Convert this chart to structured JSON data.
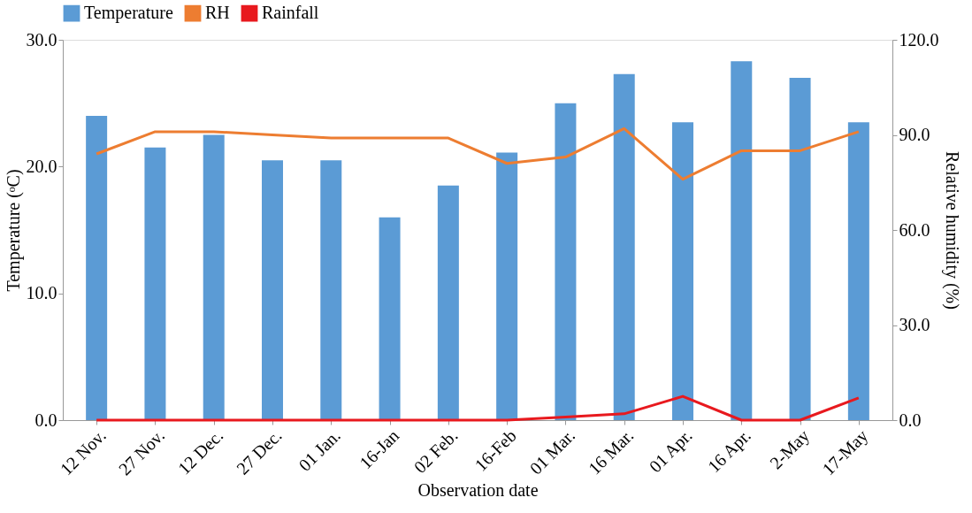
{
  "chart_data": {
    "type": "bar",
    "xlabel": "Observation date",
    "ylabel": "Temperature (ᵒC)",
    "y2label": "Relative humidity (%)",
    "categories": [
      "12 Nov.",
      "27 Nov.",
      "12 Dec.",
      "27 Dec.",
      "01 Jan.",
      "16-Jan",
      "02 Feb.",
      "16-Feb",
      "01 Mar.",
      "16 Mar.",
      "01 Apr.",
      "16 Apr.",
      "2-May",
      "17-May"
    ],
    "series": [
      {
        "name": "Temperature",
        "color": "#5b9bd5",
        "values": [
          24.0,
          21.5,
          22.5,
          20.5,
          20.5,
          16.0,
          18.5,
          21.1,
          25.0,
          27.3,
          23.5,
          28.3,
          27.0,
          23.5
        ]
      },
      {
        "name": "RH",
        "type": "line",
        "axis": "y2",
        "color": "#ed7d31",
        "values": [
          84,
          91,
          91,
          90,
          89,
          89,
          89,
          81,
          83,
          92,
          76,
          85,
          85,
          91
        ]
      },
      {
        "name": "Rainfall",
        "type": "line",
        "axis": "y2",
        "color": "#e8191e",
        "values": [
          0,
          0,
          0,
          0,
          0,
          0,
          0,
          0,
          1,
          2,
          7.5,
          0,
          0,
          7
        ]
      }
    ],
    "ylim": [
      0,
      30
    ],
    "yticks": [
      {
        "value": 0,
        "label": "0.0"
      },
      {
        "value": 10,
        "label": "10.0"
      },
      {
        "value": 20,
        "label": "20.0"
      },
      {
        "value": 30,
        "label": "30.0"
      }
    ],
    "y2lim": [
      0,
      120
    ],
    "y2ticks": [
      {
        "value": 0,
        "label": "0.0"
      },
      {
        "value": 30,
        "label": "30.0"
      },
      {
        "value": 60,
        "label": "60.0"
      },
      {
        "value": 90,
        "label": "90.0"
      },
      {
        "value": 120,
        "label": "120.0"
      }
    ],
    "legend": "top",
    "grid": false
  }
}
